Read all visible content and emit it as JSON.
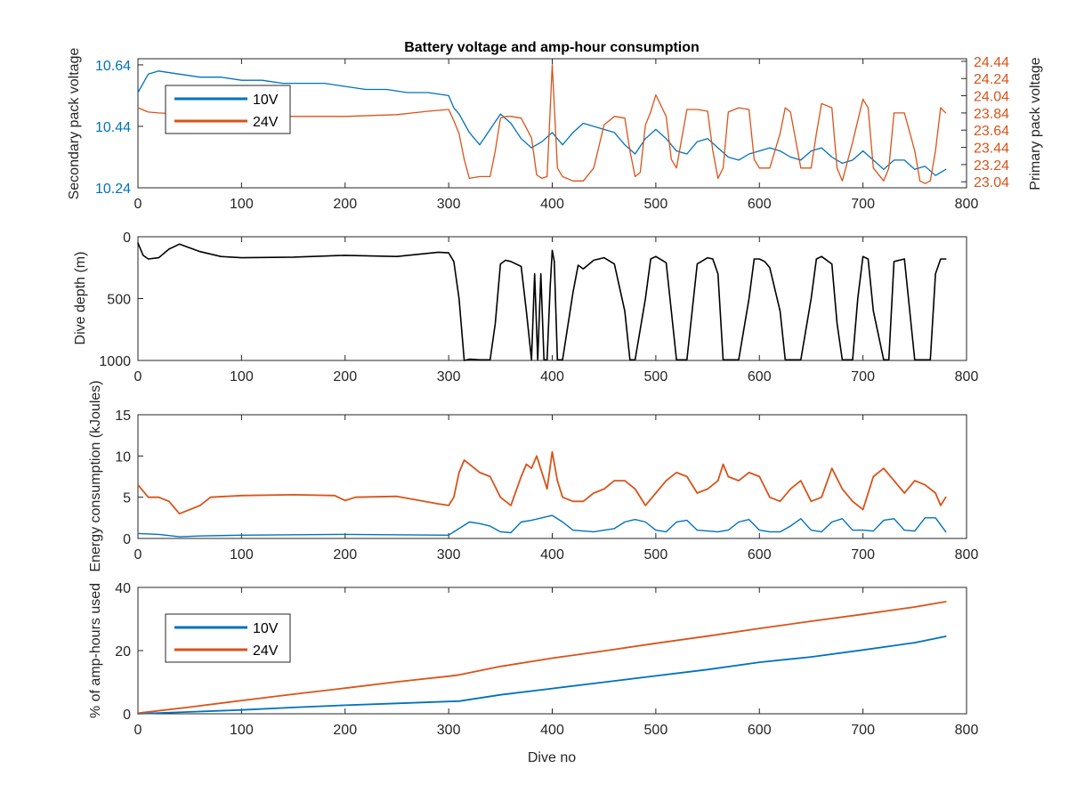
{
  "colors": {
    "series_10v": "#0072BD",
    "series_24v": "#D95319",
    "series_depth": "#000000",
    "axis": "#262626"
  },
  "chart_data": [
    {
      "type": "line",
      "title": "Battery voltage and amp-hour consumption",
      "xlabel": "",
      "ylabel": "Secondary pack voltage",
      "y2label": "Primary pack voltage",
      "xlim": [
        0,
        800
      ],
      "ylim": [
        10.24,
        10.66
      ],
      "y2lim": [
        22.97,
        24.47
      ],
      "xticks": [
        0,
        100,
        200,
        300,
        400,
        500,
        600,
        700,
        800
      ],
      "yticks": [
        10.24,
        10.44,
        10.64
      ],
      "y2ticks": [
        23.04,
        23.24,
        23.44,
        23.64,
        23.84,
        24.04,
        24.24,
        24.44
      ],
      "legend_position": "top-left",
      "series": [
        {
          "name": "10V",
          "axis": "left",
          "x": [
            0,
            10,
            20,
            40,
            60,
            80,
            100,
            120,
            140,
            160,
            180,
            200,
            220,
            240,
            260,
            280,
            300,
            305,
            310,
            315,
            320,
            325,
            330,
            340,
            350,
            360,
            370,
            380,
            390,
            400,
            410,
            420,
            430,
            440,
            450,
            460,
            470,
            480,
            490,
            500,
            510,
            520,
            530,
            540,
            550,
            560,
            570,
            580,
            590,
            600,
            610,
            620,
            630,
            640,
            650,
            660,
            670,
            680,
            690,
            700,
            710,
            720,
            730,
            740,
            750,
            760,
            770,
            780
          ],
          "y": [
            10.55,
            10.61,
            10.62,
            10.61,
            10.6,
            10.6,
            10.59,
            10.59,
            10.58,
            10.58,
            10.58,
            10.57,
            10.56,
            10.56,
            10.55,
            10.55,
            10.54,
            10.5,
            10.48,
            10.45,
            10.42,
            10.4,
            10.38,
            10.43,
            10.48,
            10.45,
            10.4,
            10.37,
            10.39,
            10.42,
            10.38,
            10.42,
            10.45,
            10.44,
            10.43,
            10.42,
            10.38,
            10.35,
            10.4,
            10.43,
            10.4,
            10.36,
            10.35,
            10.39,
            10.4,
            10.37,
            10.34,
            10.33,
            10.35,
            10.36,
            10.37,
            10.36,
            10.34,
            10.33,
            10.36,
            10.37,
            10.34,
            10.32,
            10.33,
            10.36,
            10.33,
            10.3,
            10.33,
            10.33,
            10.3,
            10.31,
            10.28,
            10.3
          ]
        },
        {
          "name": "24V",
          "axis": "right",
          "x": [
            0,
            10,
            20,
            50,
            100,
            150,
            200,
            250,
            280,
            300,
            305,
            310,
            315,
            320,
            330,
            340,
            345,
            350,
            355,
            360,
            370,
            380,
            385,
            390,
            395,
            400,
            405,
            410,
            420,
            430,
            440,
            450,
            460,
            470,
            475,
            480,
            485,
            490,
            495,
            500,
            510,
            515,
            520,
            530,
            540,
            550,
            555,
            560,
            565,
            570,
            580,
            590,
            595,
            600,
            610,
            620,
            625,
            630,
            640,
            650,
            655,
            660,
            670,
            675,
            680,
            690,
            700,
            705,
            710,
            720,
            725,
            730,
            740,
            750,
            755,
            760,
            765,
            770,
            775,
            780
          ],
          "y": [
            23.9,
            23.85,
            23.84,
            23.82,
            23.81,
            23.8,
            23.8,
            23.82,
            23.86,
            23.88,
            23.75,
            23.6,
            23.3,
            23.08,
            23.1,
            23.1,
            23.4,
            23.78,
            23.8,
            23.8,
            23.78,
            23.55,
            23.12,
            23.08,
            23.1,
            24.4,
            23.2,
            23.1,
            23.05,
            23.05,
            23.2,
            23.7,
            23.8,
            23.78,
            23.4,
            23.1,
            23.15,
            23.7,
            23.85,
            24.05,
            23.8,
            23.3,
            23.2,
            23.88,
            23.88,
            23.86,
            23.4,
            23.08,
            23.2,
            23.85,
            23.9,
            23.88,
            23.3,
            23.2,
            23.2,
            23.6,
            23.9,
            23.85,
            23.2,
            23.2,
            23.6,
            23.95,
            23.9,
            23.2,
            23.05,
            23.5,
            24.0,
            23.9,
            23.2,
            23.05,
            23.2,
            23.84,
            23.84,
            23.4,
            23.05,
            23.02,
            23.05,
            23.4,
            23.9,
            23.84
          ]
        }
      ]
    },
    {
      "type": "line",
      "xlabel": "",
      "ylabel": "Dive depth (m)",
      "xlim": [
        0,
        800
      ],
      "ylim": [
        1000,
        0
      ],
      "reversed_y": true,
      "xticks": [
        0,
        100,
        200,
        300,
        400,
        500,
        600,
        700,
        800
      ],
      "yticks": [
        0,
        500,
        1000
      ],
      "series": [
        {
          "x": [
            0,
            5,
            10,
            20,
            30,
            40,
            50,
            60,
            80,
            100,
            150,
            200,
            250,
            290,
            300,
            305,
            310,
            315,
            320,
            330,
            340,
            345,
            350,
            355,
            360,
            370,
            375,
            380,
            383,
            386,
            389,
            392,
            395,
            398,
            400,
            402,
            405,
            410,
            420,
            425,
            430,
            440,
            450,
            460,
            470,
            475,
            480,
            490,
            495,
            500,
            510,
            515,
            520,
            530,
            540,
            550,
            555,
            560,
            565,
            570,
            580,
            590,
            595,
            600,
            605,
            610,
            620,
            625,
            630,
            640,
            650,
            655,
            660,
            670,
            675,
            680,
            690,
            695,
            700,
            705,
            710,
            720,
            725,
            730,
            740,
            750,
            760,
            765,
            770,
            775,
            780
          ],
          "y": [
            50,
            150,
            180,
            170,
            100,
            60,
            90,
            120,
            160,
            170,
            165,
            150,
            160,
            125,
            130,
            200,
            500,
            1000,
            990,
            995,
            995,
            700,
            220,
            190,
            200,
            240,
            600,
            995,
            300,
            995,
            300,
            995,
            995,
            400,
            110,
            200,
            995,
            995,
            450,
            230,
            260,
            190,
            170,
            220,
            600,
            995,
            995,
            500,
            180,
            160,
            210,
            600,
            995,
            995,
            220,
            170,
            180,
            300,
            995,
            995,
            995,
            500,
            180,
            180,
            200,
            250,
            600,
            995,
            995,
            995,
            500,
            180,
            160,
            220,
            700,
            995,
            995,
            500,
            160,
            180,
            600,
            995,
            995,
            200,
            180,
            995,
            995,
            995,
            300,
            180,
            180
          ]
        }
      ]
    },
    {
      "type": "line",
      "xlabel": "",
      "ylabel": "Energy consumption (kJoules)",
      "xlim": [
        0,
        800
      ],
      "ylim": [
        0,
        15
      ],
      "xticks": [
        0,
        100,
        200,
        300,
        400,
        500,
        600,
        700,
        800
      ],
      "yticks": [
        0,
        5,
        10,
        15
      ],
      "series": [
        {
          "name": "24V",
          "x": [
            0,
            10,
            20,
            30,
            40,
            50,
            60,
            70,
            100,
            150,
            190,
            200,
            210,
            250,
            290,
            300,
            305,
            310,
            315,
            320,
            330,
            340,
            350,
            360,
            370,
            375,
            380,
            385,
            390,
            395,
            400,
            405,
            410,
            420,
            430,
            440,
            450,
            460,
            470,
            480,
            490,
            500,
            510,
            520,
            530,
            540,
            550,
            560,
            565,
            570,
            580,
            590,
            600,
            610,
            620,
            630,
            640,
            650,
            660,
            670,
            680,
            690,
            700,
            710,
            720,
            730,
            740,
            750,
            760,
            770,
            775,
            780
          ],
          "y": [
            6.5,
            5.0,
            5.0,
            4.5,
            3.0,
            3.5,
            4.0,
            5.0,
            5.2,
            5.3,
            5.2,
            4.6,
            5.0,
            5.1,
            4.2,
            4.0,
            5.0,
            8.0,
            9.5,
            9.0,
            8.0,
            7.5,
            5.0,
            4.0,
            7.5,
            9.0,
            8.5,
            10.0,
            8.0,
            6.0,
            10.5,
            7.0,
            5.0,
            4.5,
            4.5,
            5.5,
            6.0,
            7.0,
            7.0,
            6.0,
            4.0,
            5.5,
            7.0,
            8.0,
            7.5,
            5.5,
            6.0,
            7.0,
            9.0,
            7.5,
            7.0,
            8.0,
            7.5,
            5.0,
            4.5,
            6.0,
            7.0,
            4.5,
            5.0,
            8.5,
            6.0,
            4.5,
            3.5,
            7.5,
            8.5,
            7.0,
            5.5,
            7.0,
            6.5,
            5.5,
            4.0,
            5.0
          ]
        },
        {
          "name": "10V",
          "x": [
            0,
            20,
            40,
            60,
            100,
            200,
            300,
            305,
            310,
            320,
            330,
            340,
            350,
            360,
            370,
            380,
            390,
            400,
            410,
            420,
            440,
            460,
            470,
            480,
            490,
            500,
            510,
            520,
            530,
            540,
            560,
            570,
            580,
            590,
            600,
            610,
            620,
            630,
            640,
            650,
            660,
            670,
            680,
            690,
            700,
            710,
            720,
            730,
            740,
            750,
            760,
            770,
            780
          ],
          "y": [
            0.6,
            0.5,
            0.2,
            0.3,
            0.4,
            0.5,
            0.4,
            0.8,
            1.2,
            2.0,
            1.8,
            1.5,
            0.8,
            0.7,
            2.0,
            2.2,
            2.5,
            2.8,
            2.0,
            1.0,
            0.8,
            1.2,
            2.0,
            2.3,
            2.0,
            1.0,
            0.8,
            2.0,
            2.2,
            1.0,
            0.8,
            1.0,
            2.0,
            2.3,
            1.0,
            0.8,
            0.8,
            1.5,
            2.4,
            1.0,
            0.8,
            2.0,
            2.4,
            1.0,
            1.0,
            0.9,
            2.2,
            2.4,
            1.0,
            0.9,
            2.5,
            2.5,
            0.8
          ]
        }
      ]
    },
    {
      "type": "line",
      "xlabel": "Dive no",
      "ylabel": "% of amp-hours used",
      "xlim": [
        0,
        800
      ],
      "ylim": [
        0,
        40
      ],
      "xticks": [
        0,
        100,
        200,
        300,
        400,
        500,
        600,
        700,
        800
      ],
      "yticks": [
        0,
        20,
        40
      ],
      "legend_position": "top-left",
      "series": [
        {
          "name": "10V",
          "x": [
            0,
            50,
            100,
            150,
            200,
            250,
            300,
            310,
            350,
            400,
            450,
            500,
            550,
            600,
            650,
            700,
            750,
            780
          ],
          "y": [
            0,
            0.6,
            1.2,
            2.0,
            2.7,
            3.3,
            3.9,
            4.0,
            6.0,
            8.0,
            10.0,
            12.0,
            14.0,
            16.3,
            18.0,
            20.2,
            22.5,
            24.5
          ]
        },
        {
          "name": "24V",
          "x": [
            0,
            50,
            100,
            150,
            200,
            250,
            300,
            310,
            350,
            400,
            450,
            500,
            550,
            600,
            650,
            700,
            750,
            780
          ],
          "y": [
            0.2,
            2.1,
            4.2,
            6.2,
            8.1,
            10.1,
            11.9,
            12.3,
            15.0,
            17.6,
            19.9,
            22.3,
            24.6,
            27.0,
            29.3,
            31.5,
            33.8,
            35.5
          ]
        }
      ]
    }
  ]
}
